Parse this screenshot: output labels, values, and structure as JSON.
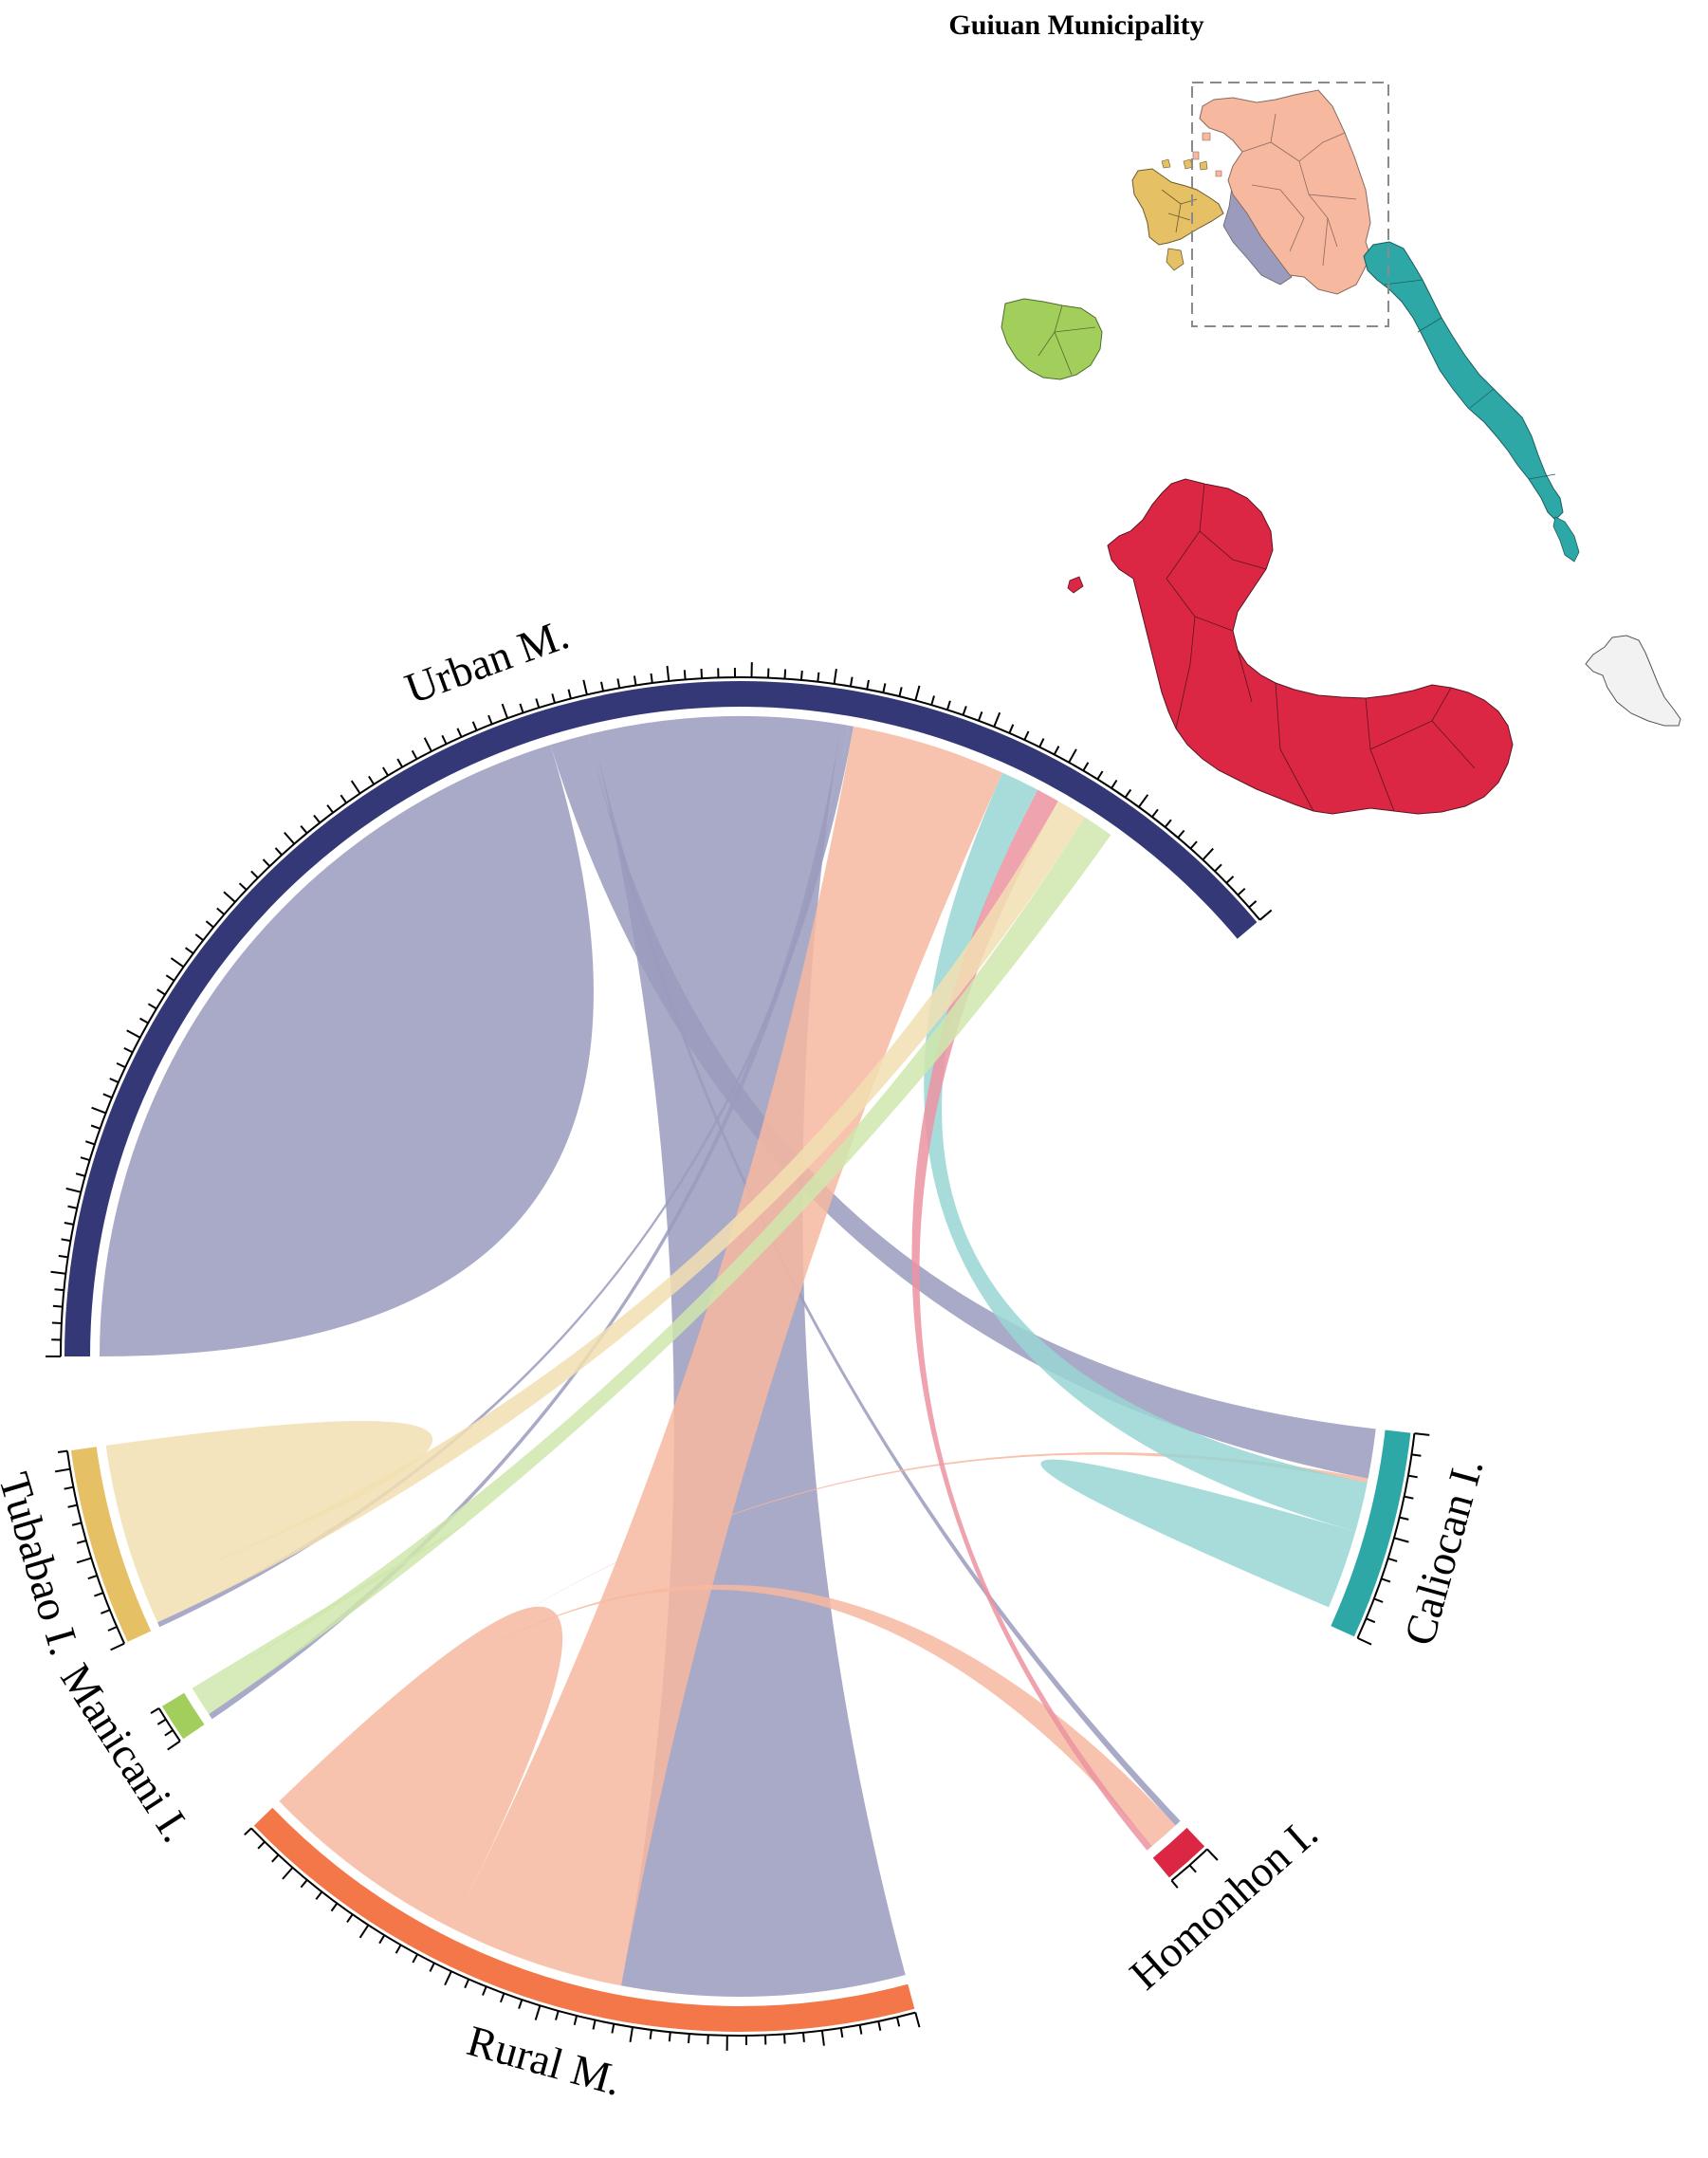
{
  "map": {
    "title": "Guiuan Municipality",
    "regions": [
      {
        "name": "Urban M.",
        "color": "#343877"
      },
      {
        "name": "Rural M.",
        "color": "#F37748"
      },
      {
        "name": "Tubabao I.",
        "color": "#E6C065"
      },
      {
        "name": "Manicani I.",
        "color": "#A2CE5C"
      },
      {
        "name": "Homonhon I.",
        "color": "#DB2744"
      },
      {
        "name": "Caliocan I.",
        "color": "#2EA8A6"
      }
    ]
  },
  "chord": {
    "segments": [
      {
        "key": "urban",
        "label": "Urban M.",
        "color": "#343877",
        "ribbon_color": "#9A9BBD",
        "value": 100
      },
      {
        "key": "caliocan",
        "label": "Caliocan I.",
        "color": "#2EA8A6",
        "ribbon_color": "#99D6D4",
        "value": 10
      },
      {
        "key": "homonhon",
        "label": "Homonhon I.",
        "color": "#DB2744",
        "ribbon_color": "#EC93A1",
        "value": 2
      },
      {
        "key": "rural",
        "label": "Rural M.",
        "color": "#F37748",
        "ribbon_color": "#F7B8A0",
        "value": 38
      },
      {
        "key": "manicani",
        "label": "Manicani I.",
        "color": "#A2CE5C",
        "ribbon_color": "#D0E6AD",
        "value": 3
      },
      {
        "key": "tubabao",
        "label": "Tubabao I.",
        "color": "#E6C065",
        "ribbon_color": "#F2DFB1",
        "value": 11
      }
    ],
    "flows": [
      {
        "from": "urban",
        "to": "urban",
        "value": 52
      },
      {
        "from": "urban",
        "to": "caliocan",
        "value": 2.5
      },
      {
        "from": "urban",
        "to": "homonhon",
        "value": 0.3
      },
      {
        "from": "urban",
        "to": "rural",
        "value": 16
      },
      {
        "from": "urban",
        "to": "manicani",
        "value": 0.5
      },
      {
        "from": "urban",
        "to": "tubabao",
        "value": 0.3
      },
      {
        "from": "rural",
        "to": "urban",
        "value": 10
      },
      {
        "from": "rural",
        "to": "rural",
        "value": 15
      },
      {
        "from": "rural",
        "to": "caliocan",
        "value": 0.2
      },
      {
        "from": "rural",
        "to": "homonhon",
        "value": 1.4
      },
      {
        "from": "caliocan",
        "to": "urban",
        "value": 2.5
      },
      {
        "from": "caliocan",
        "to": "caliocan",
        "value": 4
      },
      {
        "from": "homonhon",
        "to": "urban",
        "value": 1.5
      },
      {
        "from": "tubabao",
        "to": "urban",
        "value": 2
      },
      {
        "from": "tubabao",
        "to": "tubabao",
        "value": 9
      },
      {
        "from": "tubabao",
        "to": "rural",
        "value": 0.3
      },
      {
        "from": "manicani",
        "to": "urban",
        "value": 2
      },
      {
        "from": "manicani",
        "to": "manicani",
        "value": 0.5
      }
    ]
  }
}
